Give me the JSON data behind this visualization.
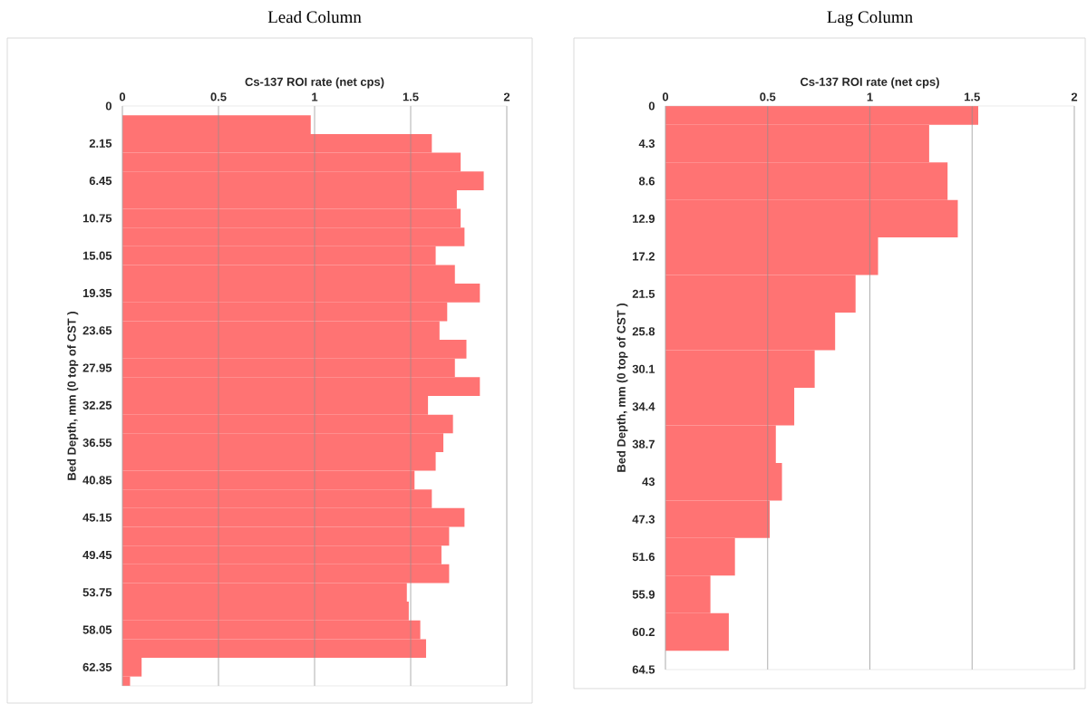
{
  "chart_data": [
    {
      "type": "bar",
      "orientation": "horizontal",
      "title": "Lead Column",
      "xlabel": "Cs-137 ROI rate (net cps)",
      "ylabel": "Bed Depth, mm (0 top of CST )",
      "categories": [
        "0",
        null,
        "2.15",
        null,
        "6.45",
        null,
        "10.75",
        null,
        "15.05",
        null,
        "19.35",
        null,
        "23.65",
        null,
        "27.95",
        null,
        "32.25",
        null,
        "36.55",
        null,
        "40.85",
        null,
        "45.15",
        null,
        "49.45",
        null,
        "53.75",
        null,
        "58.05",
        null,
        "62.35",
        null
      ],
      "values": [
        null,
        0.98,
        1.61,
        1.76,
        1.88,
        1.74,
        1.76,
        1.78,
        1.63,
        1.73,
        1.86,
        1.69,
        1.65,
        1.79,
        1.73,
        1.86,
        1.59,
        1.72,
        1.67,
        1.63,
        1.52,
        1.61,
        1.78,
        1.7,
        1.66,
        1.7,
        1.48,
        1.49,
        1.55,
        1.58,
        0.1,
        0.04
      ],
      "color": "#ff7373",
      "xlim": [
        0,
        2
      ],
      "xticks": [
        0,
        0.5,
        1,
        1.5,
        2
      ],
      "grid": "x"
    },
    {
      "type": "bar",
      "orientation": "horizontal",
      "title": "Lag Column",
      "xlabel": "Cs-137 ROI rate (net cps)",
      "ylabel": "Bed Depth, mm (0 top of CST )",
      "categories": [
        "0",
        "4.3",
        "8.6",
        "12.9",
        "17.2",
        "21.5",
        "25.8",
        "30.1",
        "34.4",
        "38.7",
        "43",
        "47.3",
        "51.6",
        "55.9",
        "60.2",
        "64.5"
      ],
      "values": [
        1.53,
        1.29,
        1.38,
        1.43,
        1.04,
        0.93,
        0.83,
        0.73,
        0.63,
        0.54,
        0.57,
        0.51,
        0.34,
        0.22,
        0.31,
        null
      ],
      "color": "#ff7373",
      "xlim": [
        0,
        2
      ],
      "xticks": [
        0,
        0.5,
        1,
        1.5,
        2
      ],
      "grid": "x"
    }
  ]
}
